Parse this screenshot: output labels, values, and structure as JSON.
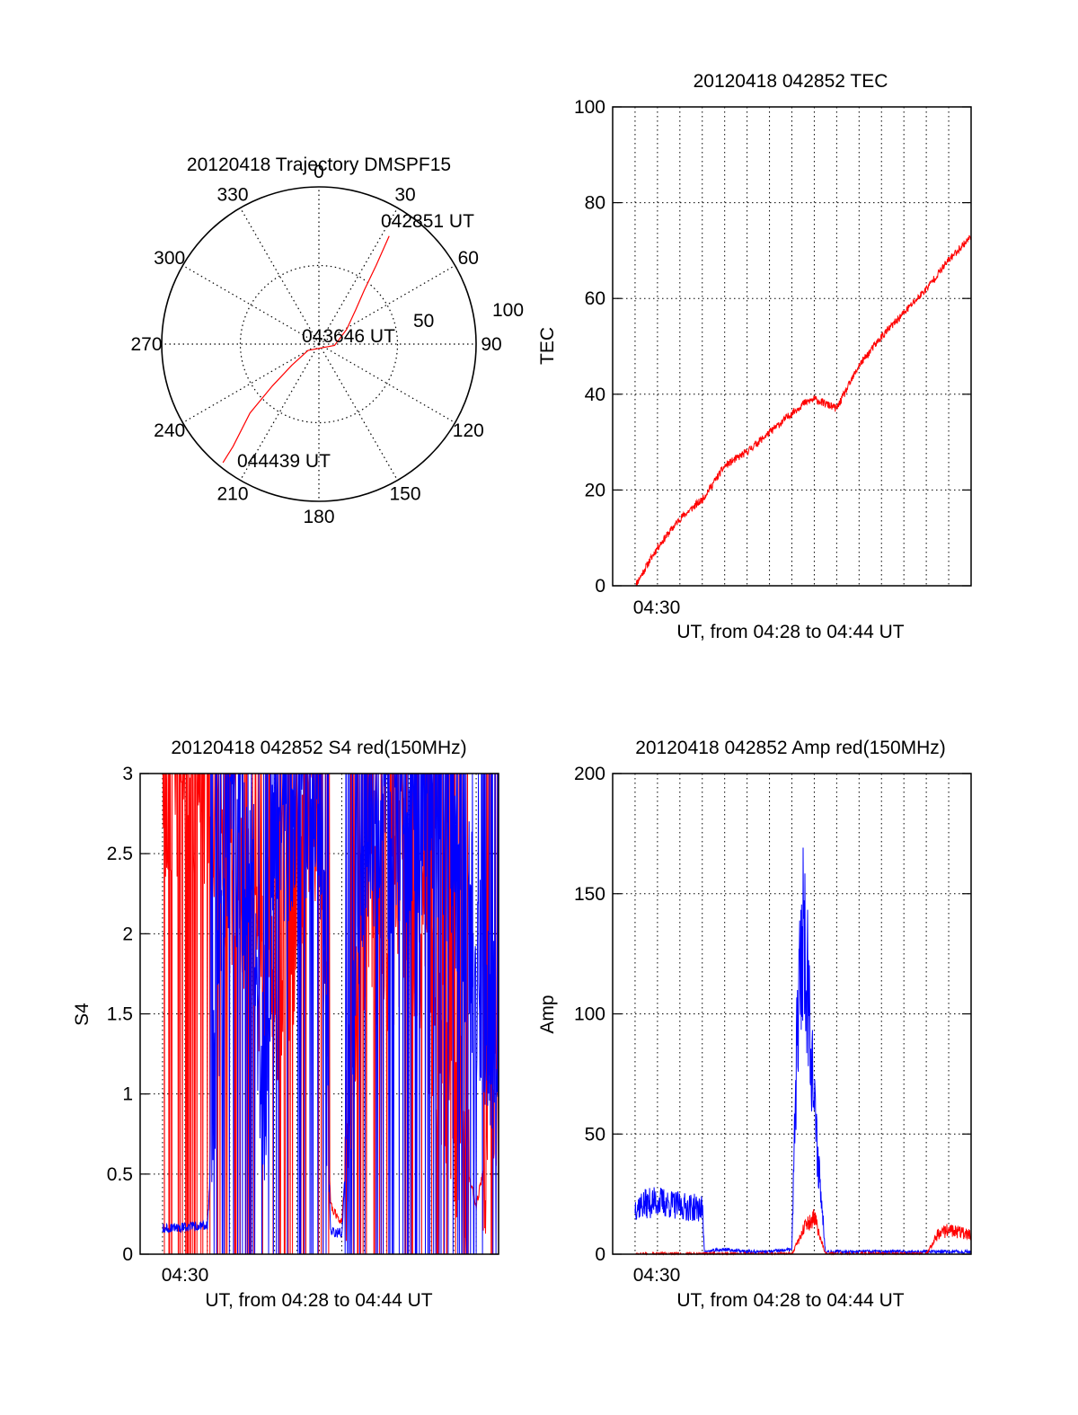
{
  "colors": {
    "red_series": "#ff0000",
    "blue_series": "#0000ff",
    "axes": "#000000",
    "grid": "#000000",
    "background": "#ffffff"
  },
  "chart_data": [
    {
      "type": "polar",
      "title": "20120418 Trajectory DMSPF15",
      "azimuth_labels": [
        "0",
        "30",
        "60",
        "90",
        "120",
        "150",
        "180",
        "210",
        "240",
        "270",
        "300",
        "330"
      ],
      "elevation_labels": [
        "50",
        "100"
      ],
      "grid": true,
      "trajectory_color": "#ff0000",
      "trajectory": [
        {
          "azimuth_deg": 33,
          "radius": 82
        },
        {
          "azimuth_deg": 36,
          "radius": 62
        },
        {
          "azimuth_deg": 40,
          "radius": 45
        },
        {
          "azimuth_deg": 47,
          "radius": 32
        },
        {
          "azimuth_deg": 62,
          "radius": 20
        },
        {
          "azimuth_deg": 95,
          "radius": 10
        },
        {
          "azimuth_deg": 240,
          "radius": 8
        },
        {
          "azimuth_deg": 232,
          "radius": 22
        },
        {
          "azimuth_deg": 228,
          "radius": 40
        },
        {
          "azimuth_deg": 225,
          "radius": 62
        },
        {
          "azimuth_deg": 220,
          "radius": 85
        },
        {
          "azimuth_deg": 219,
          "radius": 97
        }
      ],
      "annotations": [
        "042851 UT",
        "043646 UT",
        "044439 UT"
      ]
    },
    {
      "type": "line",
      "title": "20120418 042852 TEC",
      "xlabel": "UT, from 04:28 to 04:44 UT",
      "ylabel": "TEC",
      "x_tick_labels": [
        "04:30"
      ],
      "xlim_minutes_after_0428": [
        0,
        16
      ],
      "ylim": [
        0,
        100
      ],
      "y_ticks": [
        0,
        20,
        40,
        60,
        80,
        100
      ],
      "grid": true,
      "series": [
        {
          "color": "#ff0000",
          "x_minutes_after_0428": [
            1,
            2,
            3,
            4,
            5,
            6,
            7,
            8,
            8.5,
            9,
            10,
            11,
            12,
            13,
            14,
            15,
            16
          ],
          "values": [
            0,
            8,
            14,
            18,
            25,
            28,
            32,
            36,
            38,
            39,
            37,
            46,
            52,
            57,
            62,
            68,
            73
          ]
        }
      ]
    },
    {
      "type": "line",
      "title": "20120418 042852 S4 red(150MHz)",
      "xlabel": "UT, from 04:28 to 04:44 UT",
      "ylabel": "S4",
      "x_tick_labels": [
        "04:30"
      ],
      "xlim_minutes_after_0428": [
        0,
        16
      ],
      "ylim": [
        0,
        3
      ],
      "y_ticks": [
        "0",
        "0.5",
        "1",
        "1.5",
        "2",
        "2.5",
        "3"
      ],
      "grid": true,
      "series": [
        {
          "color": "#ff0000",
          "x_minutes_after_0428": [
            1,
            2,
            3,
            4,
            5,
            6,
            7,
            8,
            8.5,
            9,
            10,
            11,
            12,
            13,
            14,
            15,
            16
          ],
          "values": [
            3.0,
            3.0,
            3.0,
            2.4,
            2.0,
            1.7,
            2.2,
            3.0,
            0.3,
            0.2,
            2.2,
            2.0,
            2.3,
            1.5,
            0.9,
            0.3,
            1.0
          ]
        },
        {
          "color": "#0000ff",
          "x_minutes_after_0428": [
            1,
            2,
            3,
            4,
            5,
            5.5,
            6,
            7,
            8,
            8.5,
            9,
            10,
            11,
            12,
            13,
            14,
            15,
            16
          ],
          "values": [
            0.16,
            0.17,
            0.18,
            2.7,
            2.3,
            0.9,
            2.6,
            2.8,
            2.9,
            0.14,
            0.13,
            2.7,
            2.6,
            2.7,
            2.8,
            2.5,
            1.8,
            1.3
          ]
        }
      ]
    },
    {
      "type": "line",
      "title": "20120418 042852 Amp red(150MHz)",
      "xlabel": "UT, from 04:28 to 04:44 UT",
      "ylabel": "Amp",
      "x_tick_labels": [
        "04:30"
      ],
      "xlim_minutes_after_0428": [
        0,
        16
      ],
      "ylim": [
        0,
        200
      ],
      "y_ticks": [
        0,
        50,
        100,
        150,
        200
      ],
      "grid": true,
      "series": [
        {
          "color": "#0000ff",
          "x_minutes_after_0428": [
            1,
            2,
            3,
            4,
            4.1,
            5,
            6,
            7,
            8,
            8.2,
            8.5,
            8.8,
            9,
            9.5,
            10,
            11,
            12,
            13,
            14,
            15,
            16
          ],
          "values": [
            20,
            22,
            20,
            19,
            1,
            2,
            1,
            1,
            2,
            80,
            140,
            100,
            60,
            1,
            1,
            1,
            1,
            1,
            1,
            1,
            1
          ]
        },
        {
          "color": "#ff0000",
          "x_minutes_after_0428": [
            1,
            4,
            8,
            8.5,
            9,
            9.5,
            12,
            13,
            14,
            14.5,
            15,
            16
          ],
          "values": [
            0,
            0,
            0,
            10,
            15,
            0,
            0,
            0,
            0,
            8,
            10,
            8
          ]
        }
      ]
    }
  ]
}
